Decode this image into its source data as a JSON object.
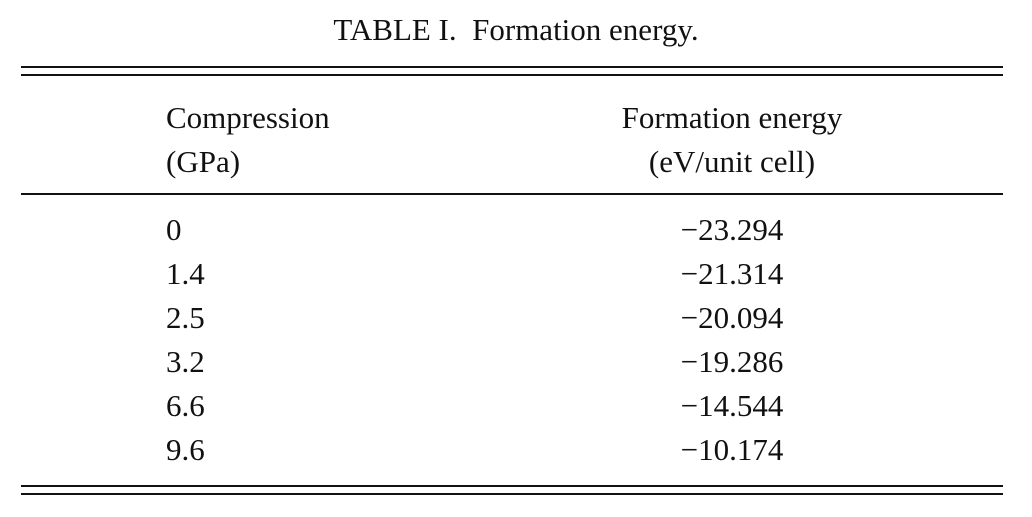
{
  "caption": "TABLE I.  Formation energy.",
  "table": {
    "headers": [
      {
        "line1": "Compression",
        "line2": "(GPa)"
      },
      {
        "line1": "Formation energy",
        "line2": "(eV/unit cell)"
      }
    ],
    "rows": [
      {
        "compression": "0",
        "energy": "−23.294"
      },
      {
        "compression": "1.4",
        "energy": "−21.314"
      },
      {
        "compression": "2.5",
        "energy": "−20.094"
      },
      {
        "compression": "3.2",
        "energy": "−19.286"
      },
      {
        "compression": "6.6",
        "energy": "−14.544"
      },
      {
        "compression": "9.6",
        "energy": "−10.174"
      }
    ]
  }
}
